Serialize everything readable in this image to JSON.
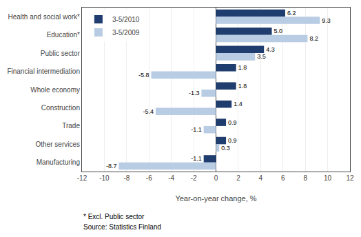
{
  "chart_data": {
    "type": "bar",
    "orientation": "horizontal",
    "categories": [
      "Health and social work*",
      "Education*",
      "Public sector",
      "Financial intermediation",
      "Whole economy",
      "Construction",
      "Trade",
      "Other services",
      "Manufacturing"
    ],
    "series": [
      {
        "name": "3-5/2010",
        "color": "#1F3D6E",
        "values": [
          6.2,
          5.0,
          4.3,
          1.8,
          1.8,
          1.4,
          0.9,
          0.9,
          -1.1
        ],
        "value_labels": [
          "6.2",
          "5.0",
          "4.3",
          "1.8",
          "1.8",
          "1.4",
          "0.9",
          "0.9",
          "-1.1"
        ]
      },
      {
        "name": "3-5/2009",
        "color": "#B8CCE4",
        "values": [
          9.3,
          8.2,
          3.5,
          -5.8,
          -1.3,
          -5.4,
          -1.1,
          0.3,
          -8.7
        ]
      }
    ],
    "xlabel": "Year-on-year change, %",
    "annotations": [
      "* Excl. Public sector",
      "Source: Statistics Finland"
    ],
    "xlim": [
      -12,
      12
    ],
    "xticks": [
      -12,
      -10,
      -8,
      -6,
      -4,
      -2,
      0,
      2,
      4,
      6,
      8,
      10,
      12
    ],
    "grid": true,
    "legend": "upper left",
    "data_labels": true
  }
}
